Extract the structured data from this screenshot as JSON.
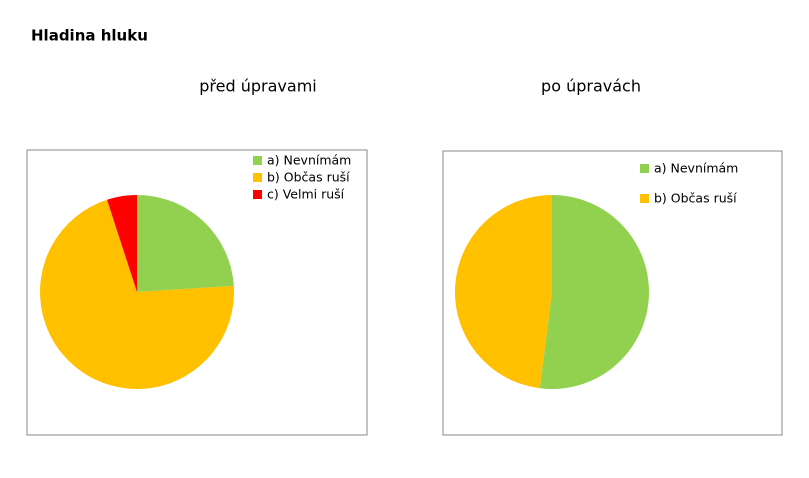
{
  "title": "Hladina hluku",
  "chart_data": [
    {
      "type": "pie",
      "title": "před úpravami",
      "categories": [
        "a) Nevnímám",
        "b) Občas ruší",
        "c) Velmi ruší"
      ],
      "values": [
        24,
        71,
        5
      ],
      "colors": [
        "#92d050",
        "#ffc000",
        "#ff0000"
      ]
    },
    {
      "type": "pie",
      "title": "po úpravách",
      "categories": [
        "a) Nevnímám",
        "b) Občas ruší"
      ],
      "values": [
        52,
        48
      ],
      "colors": [
        "#92d050",
        "#ffc000"
      ]
    }
  ]
}
